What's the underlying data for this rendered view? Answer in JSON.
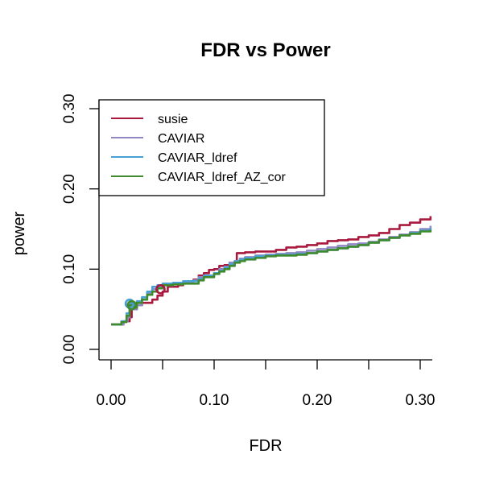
{
  "chart_data": {
    "type": "line",
    "title": "FDR vs Power",
    "xlabel": "FDR",
    "ylabel": "power",
    "xlim": [
      0,
      0.31
    ],
    "ylim": [
      0,
      0.3
    ],
    "xticks": [
      "0.00",
      "0.10",
      "0.20",
      "0.30"
    ],
    "xtick_values": [
      0,
      0.1,
      0.2,
      0.3
    ],
    "xminor_values": [
      0.05,
      0.15,
      0.25
    ],
    "yticks": [
      "0.00",
      "0.10",
      "0.20",
      "0.30"
    ],
    "ytick_values": [
      0,
      0.1,
      0.2,
      0.3
    ],
    "legend_position": "top-left",
    "series": [
      {
        "name": "susie",
        "color": "#a8193d",
        "points": [
          [
            0.0,
            0.031
          ],
          [
            0.012,
            0.035
          ],
          [
            0.018,
            0.04
          ],
          [
            0.02,
            0.05
          ],
          [
            0.025,
            0.055
          ],
          [
            0.03,
            0.058
          ],
          [
            0.04,
            0.062
          ],
          [
            0.045,
            0.067
          ],
          [
            0.05,
            0.072
          ],
          [
            0.055,
            0.078
          ],
          [
            0.065,
            0.08
          ],
          [
            0.07,
            0.085
          ],
          [
            0.08,
            0.087
          ],
          [
            0.085,
            0.092
          ],
          [
            0.09,
            0.095
          ],
          [
            0.095,
            0.099
          ],
          [
            0.1,
            0.1
          ],
          [
            0.105,
            0.104
          ],
          [
            0.11,
            0.105
          ],
          [
            0.115,
            0.108
          ],
          [
            0.12,
            0.11
          ],
          [
            0.122,
            0.12
          ],
          [
            0.13,
            0.121
          ],
          [
            0.14,
            0.122
          ],
          [
            0.15,
            0.122
          ],
          [
            0.16,
            0.124
          ],
          [
            0.17,
            0.127
          ],
          [
            0.18,
            0.128
          ],
          [
            0.19,
            0.13
          ],
          [
            0.2,
            0.132
          ],
          [
            0.21,
            0.135
          ],
          [
            0.22,
            0.136
          ],
          [
            0.23,
            0.137
          ],
          [
            0.24,
            0.14
          ],
          [
            0.25,
            0.142
          ],
          [
            0.26,
            0.145
          ],
          [
            0.27,
            0.15
          ],
          [
            0.28,
            0.155
          ],
          [
            0.29,
            0.158
          ],
          [
            0.3,
            0.162
          ],
          [
            0.31,
            0.166
          ]
        ]
      },
      {
        "name": "CAVIAR",
        "color": "#8f88c2",
        "points": [
          [
            0.0,
            0.031
          ],
          [
            0.012,
            0.035
          ],
          [
            0.016,
            0.04
          ],
          [
            0.018,
            0.05
          ],
          [
            0.025,
            0.055
          ],
          [
            0.03,
            0.062
          ],
          [
            0.035,
            0.07
          ],
          [
            0.04,
            0.075
          ],
          [
            0.045,
            0.078
          ],
          [
            0.05,
            0.08
          ],
          [
            0.06,
            0.082
          ],
          [
            0.07,
            0.084
          ],
          [
            0.08,
            0.086
          ],
          [
            0.085,
            0.09
          ],
          [
            0.09,
            0.092
          ],
          [
            0.1,
            0.095
          ],
          [
            0.105,
            0.1
          ],
          [
            0.11,
            0.103
          ],
          [
            0.115,
            0.108
          ],
          [
            0.12,
            0.11
          ],
          [
            0.125,
            0.113
          ],
          [
            0.13,
            0.115
          ],
          [
            0.14,
            0.117
          ],
          [
            0.15,
            0.118
          ],
          [
            0.16,
            0.119
          ],
          [
            0.17,
            0.12
          ],
          [
            0.18,
            0.121
          ],
          [
            0.19,
            0.123
          ],
          [
            0.2,
            0.125
          ],
          [
            0.21,
            0.127
          ],
          [
            0.22,
            0.129
          ],
          [
            0.23,
            0.131
          ],
          [
            0.24,
            0.132
          ],
          [
            0.25,
            0.134
          ],
          [
            0.26,
            0.137
          ],
          [
            0.27,
            0.14
          ],
          [
            0.28,
            0.143
          ],
          [
            0.29,
            0.146
          ],
          [
            0.3,
            0.15
          ],
          [
            0.31,
            0.154
          ]
        ]
      },
      {
        "name": "CAVIAR_ldref",
        "color": "#4a9fd4",
        "points": [
          [
            0.0,
            0.031
          ],
          [
            0.01,
            0.035
          ],
          [
            0.015,
            0.045
          ],
          [
            0.018,
            0.058
          ],
          [
            0.02,
            0.055
          ],
          [
            0.025,
            0.06
          ],
          [
            0.03,
            0.065
          ],
          [
            0.035,
            0.072
          ],
          [
            0.04,
            0.078
          ],
          [
            0.045,
            0.08
          ],
          [
            0.05,
            0.082
          ],
          [
            0.06,
            0.083
          ],
          [
            0.07,
            0.085
          ],
          [
            0.08,
            0.085
          ],
          [
            0.085,
            0.088
          ],
          [
            0.09,
            0.092
          ],
          [
            0.1,
            0.095
          ],
          [
            0.105,
            0.098
          ],
          [
            0.11,
            0.102
          ],
          [
            0.115,
            0.106
          ],
          [
            0.12,
            0.11
          ],
          [
            0.125,
            0.112
          ],
          [
            0.13,
            0.114
          ],
          [
            0.14,
            0.116
          ],
          [
            0.15,
            0.117
          ],
          [
            0.16,
            0.118
          ],
          [
            0.17,
            0.118
          ],
          [
            0.18,
            0.119
          ],
          [
            0.19,
            0.12
          ],
          [
            0.2,
            0.122
          ],
          [
            0.21,
            0.124
          ],
          [
            0.22,
            0.126
          ],
          [
            0.23,
            0.128
          ],
          [
            0.24,
            0.13
          ],
          [
            0.25,
            0.133
          ],
          [
            0.26,
            0.136
          ],
          [
            0.27,
            0.139
          ],
          [
            0.28,
            0.142
          ],
          [
            0.29,
            0.145
          ],
          [
            0.3,
            0.148
          ],
          [
            0.31,
            0.151
          ]
        ]
      },
      {
        "name": "CAVIAR_ldref_AZ_cor",
        "color": "#3f8a2c",
        "points": [
          [
            0.0,
            0.031
          ],
          [
            0.01,
            0.034
          ],
          [
            0.015,
            0.042
          ],
          [
            0.018,
            0.055
          ],
          [
            0.022,
            0.052
          ],
          [
            0.025,
            0.058
          ],
          [
            0.03,
            0.062
          ],
          [
            0.035,
            0.068
          ],
          [
            0.04,
            0.072
          ],
          [
            0.045,
            0.076
          ],
          [
            0.05,
            0.08
          ],
          [
            0.06,
            0.081
          ],
          [
            0.07,
            0.082
          ],
          [
            0.08,
            0.082
          ],
          [
            0.085,
            0.086
          ],
          [
            0.09,
            0.09
          ],
          [
            0.1,
            0.094
          ],
          [
            0.105,
            0.097
          ],
          [
            0.11,
            0.1
          ],
          [
            0.115,
            0.104
          ],
          [
            0.12,
            0.108
          ],
          [
            0.125,
            0.11
          ],
          [
            0.13,
            0.112
          ],
          [
            0.14,
            0.114
          ],
          [
            0.15,
            0.116
          ],
          [
            0.16,
            0.117
          ],
          [
            0.17,
            0.117
          ],
          [
            0.18,
            0.118
          ],
          [
            0.19,
            0.12
          ],
          [
            0.2,
            0.122
          ],
          [
            0.21,
            0.124
          ],
          [
            0.22,
            0.126
          ],
          [
            0.23,
            0.128
          ],
          [
            0.24,
            0.13
          ],
          [
            0.25,
            0.133
          ],
          [
            0.26,
            0.136
          ],
          [
            0.27,
            0.139
          ],
          [
            0.28,
            0.142
          ],
          [
            0.29,
            0.144
          ],
          [
            0.3,
            0.147
          ],
          [
            0.31,
            0.149
          ]
        ]
      }
    ],
    "markers": [
      {
        "series": "CAVIAR_ldref",
        "x": 0.018,
        "y": 0.057
      },
      {
        "series": "CAVIAR_ldref_AZ_cor",
        "x": 0.02,
        "y": 0.055
      },
      {
        "series": "susie",
        "x": 0.048,
        "y": 0.075
      }
    ]
  }
}
